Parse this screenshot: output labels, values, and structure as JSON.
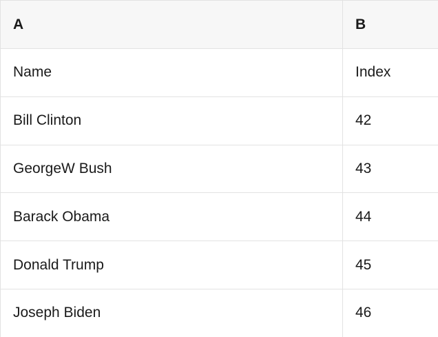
{
  "table": {
    "column_headers": [
      "A",
      "B"
    ],
    "rows": [
      {
        "a": "Name",
        "b": "Index"
      },
      {
        "a": "Bill Clinton",
        "b": "42"
      },
      {
        "a": "GeorgeW Bush",
        "b": "43"
      },
      {
        "a": "Barack Obama",
        "b": "44"
      },
      {
        "a": "Donald Trump",
        "b": "45"
      },
      {
        "a": "Joseph Biden",
        "b": "46"
      }
    ]
  },
  "colors": {
    "header_background": "#f7f7f7",
    "grid_border": "#e2e2e2",
    "text": "#1a1a1a"
  }
}
